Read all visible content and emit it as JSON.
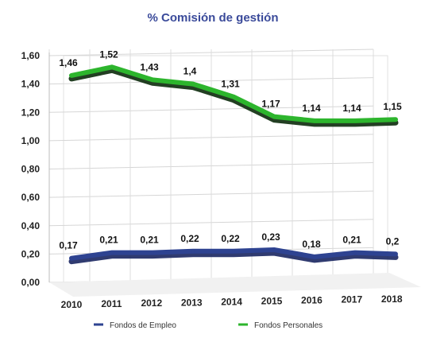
{
  "chart_data": {
    "type": "line",
    "title": "% Comisión de gestión",
    "categories": [
      "2010",
      "2011",
      "2012",
      "2013",
      "2014",
      "2015",
      "2016",
      "2017",
      "2018"
    ],
    "y_ticks": [
      "0,00",
      "0,20",
      "0,40",
      "0,60",
      "0,80",
      "1,00",
      "1,20",
      "1,40",
      "1,60"
    ],
    "ylim": [
      0,
      1.6
    ],
    "grid": true,
    "legend_position": "bottom",
    "series": [
      {
        "name": "Fondos de Empleo",
        "color": "#2e4391",
        "values": [
          0.17,
          0.21,
          0.21,
          0.22,
          0.22,
          0.23,
          0.18,
          0.21,
          0.2
        ],
        "labels": [
          "0,17",
          "0,21",
          "0,21",
          "0,22",
          "0,22",
          "0,23",
          "0,18",
          "0,21",
          "0,2"
        ]
      },
      {
        "name": "Fondos Personales",
        "color": "#2db52d",
        "values": [
          1.46,
          1.52,
          1.43,
          1.4,
          1.31,
          1.17,
          1.14,
          1.14,
          1.15
        ],
        "labels": [
          "1,46",
          "1,52",
          "1,43",
          "1,4",
          "1,31",
          "1,17",
          "1,14",
          "1,14",
          "1,15"
        ]
      }
    ],
    "title_color": "#3a4a9a"
  }
}
